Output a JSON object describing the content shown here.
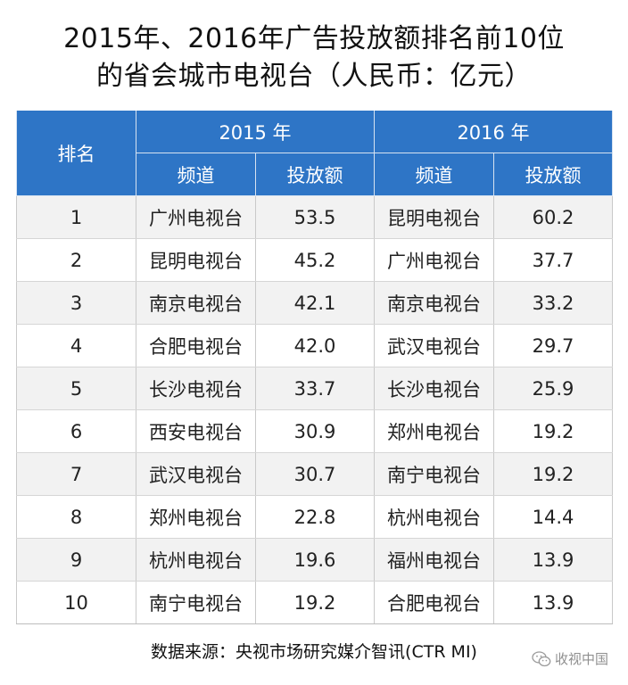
{
  "title": {
    "line1": "2015年、2016年广告投放额排名前10位",
    "line2": "的省会城市电视台（人民币：亿元）"
  },
  "table": {
    "header": {
      "rank": "排名",
      "year2015": "2015 年",
      "year2016": "2016 年",
      "channel_2015": "频道",
      "amount_2015": "投放额",
      "channel_2016": "频道",
      "amount_2016": "投放额"
    },
    "rows": [
      {
        "rank": "1",
        "ch2015": "广州电视台",
        "amt2015": "53.5",
        "ch2016": "昆明电视台",
        "amt2016": "60.2"
      },
      {
        "rank": "2",
        "ch2015": "昆明电视台",
        "amt2015": "45.2",
        "ch2016": "广州电视台",
        "amt2016": "37.7"
      },
      {
        "rank": "3",
        "ch2015": "南京电视台",
        "amt2015": "42.1",
        "ch2016": "南京电视台",
        "amt2016": "33.2"
      },
      {
        "rank": "4",
        "ch2015": "合肥电视台",
        "amt2015": "42.0",
        "ch2016": "武汉电视台",
        "amt2016": "29.7"
      },
      {
        "rank": "5",
        "ch2015": "长沙电视台",
        "amt2015": "33.7",
        "ch2016": "长沙电视台",
        "amt2016": "25.9"
      },
      {
        "rank": "6",
        "ch2015": "西安电视台",
        "amt2015": "30.9",
        "ch2016": "郑州电视台",
        "amt2016": "19.2"
      },
      {
        "rank": "7",
        "ch2015": "武汉电视台",
        "amt2015": "30.7",
        "ch2016": "南宁电视台",
        "amt2016": "19.2"
      },
      {
        "rank": "8",
        "ch2015": "郑州电视台",
        "amt2015": "22.8",
        "ch2016": "杭州电视台",
        "amt2016": "14.4"
      },
      {
        "rank": "9",
        "ch2015": "杭州电视台",
        "amt2015": "19.6",
        "ch2016": "福州电视台",
        "amt2016": "13.9"
      },
      {
        "rank": "10",
        "ch2015": "南宁电视台",
        "amt2015": "19.2",
        "ch2016": "合肥电视台",
        "amt2016": "13.9"
      }
    ]
  },
  "source": "数据来源：央视市场研究媒介智讯(CTR MI)",
  "watermark": {
    "icon": "wechat-icon",
    "text": "收视中国"
  },
  "colors": {
    "header_bg": "#2e75c6",
    "row_alt_bg": "#f2f2f2"
  }
}
